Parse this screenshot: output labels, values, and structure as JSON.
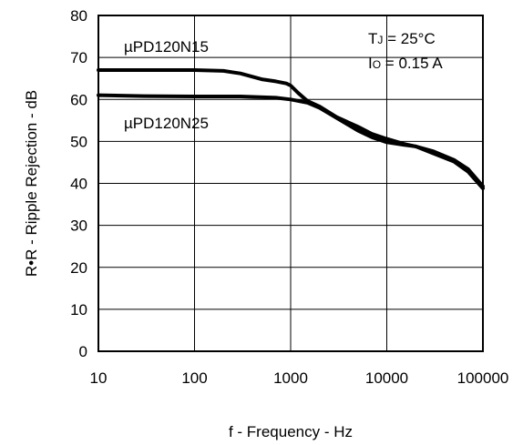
{
  "chart_data": {
    "type": "line",
    "title": "",
    "xlabel": "f - Frequency - Hz",
    "ylabel": "R•R - Ripple Rejection - dB",
    "xscale": "log",
    "xlim": [
      10,
      100000
    ],
    "ylim": [
      0,
      80
    ],
    "xticks": [
      10,
      100,
      1000,
      10000,
      100000
    ],
    "xtick_labels": [
      "10",
      "100",
      "1000",
      "10000",
      "100000"
    ],
    "yticks": [
      0,
      10,
      20,
      30,
      40,
      50,
      60,
      70,
      80
    ],
    "ytick_labels": [
      "0",
      "10",
      "20",
      "30",
      "40",
      "50",
      "60",
      "70",
      "80"
    ],
    "grid": true,
    "series": [
      {
        "name": "µPD120N15",
        "color": "#000000",
        "x": [
          10,
          30,
          100,
          200,
          300,
          500,
          700,
          900,
          1000,
          1200,
          1500,
          2000,
          3000,
          5000,
          7000,
          10000,
          15000,
          20000,
          30000,
          50000,
          70000,
          100000
        ],
        "y": [
          67,
          67,
          67,
          66.8,
          66.2,
          64.8,
          64.3,
          63.8,
          63.3,
          61.5,
          59.6,
          58.3,
          55.8,
          53.5,
          51.8,
          50.6,
          49.4,
          48.8,
          47.7,
          45.6,
          43.4,
          39.3
        ]
      },
      {
        "name": "µPD120N25",
        "color": "#000000",
        "x": [
          10,
          30,
          100,
          300,
          700,
          1000,
          1500,
          2000,
          3000,
          5000,
          7000,
          10000,
          15000,
          20000,
          30000,
          50000,
          70000,
          100000
        ],
        "y": [
          61,
          60.8,
          60.7,
          60.7,
          60.4,
          60,
          59.2,
          58,
          55.6,
          52.6,
          51,
          49.8,
          49.2,
          48.8,
          47.2,
          45.2,
          42.8,
          38.8
        ]
      }
    ],
    "annotations": {
      "tj": {
        "prefix": "T",
        "sub": "J",
        "text": " = 25°C"
      },
      "io": {
        "prefix": "I",
        "sub": "O",
        "text": " = 0.15 A"
      }
    }
  }
}
